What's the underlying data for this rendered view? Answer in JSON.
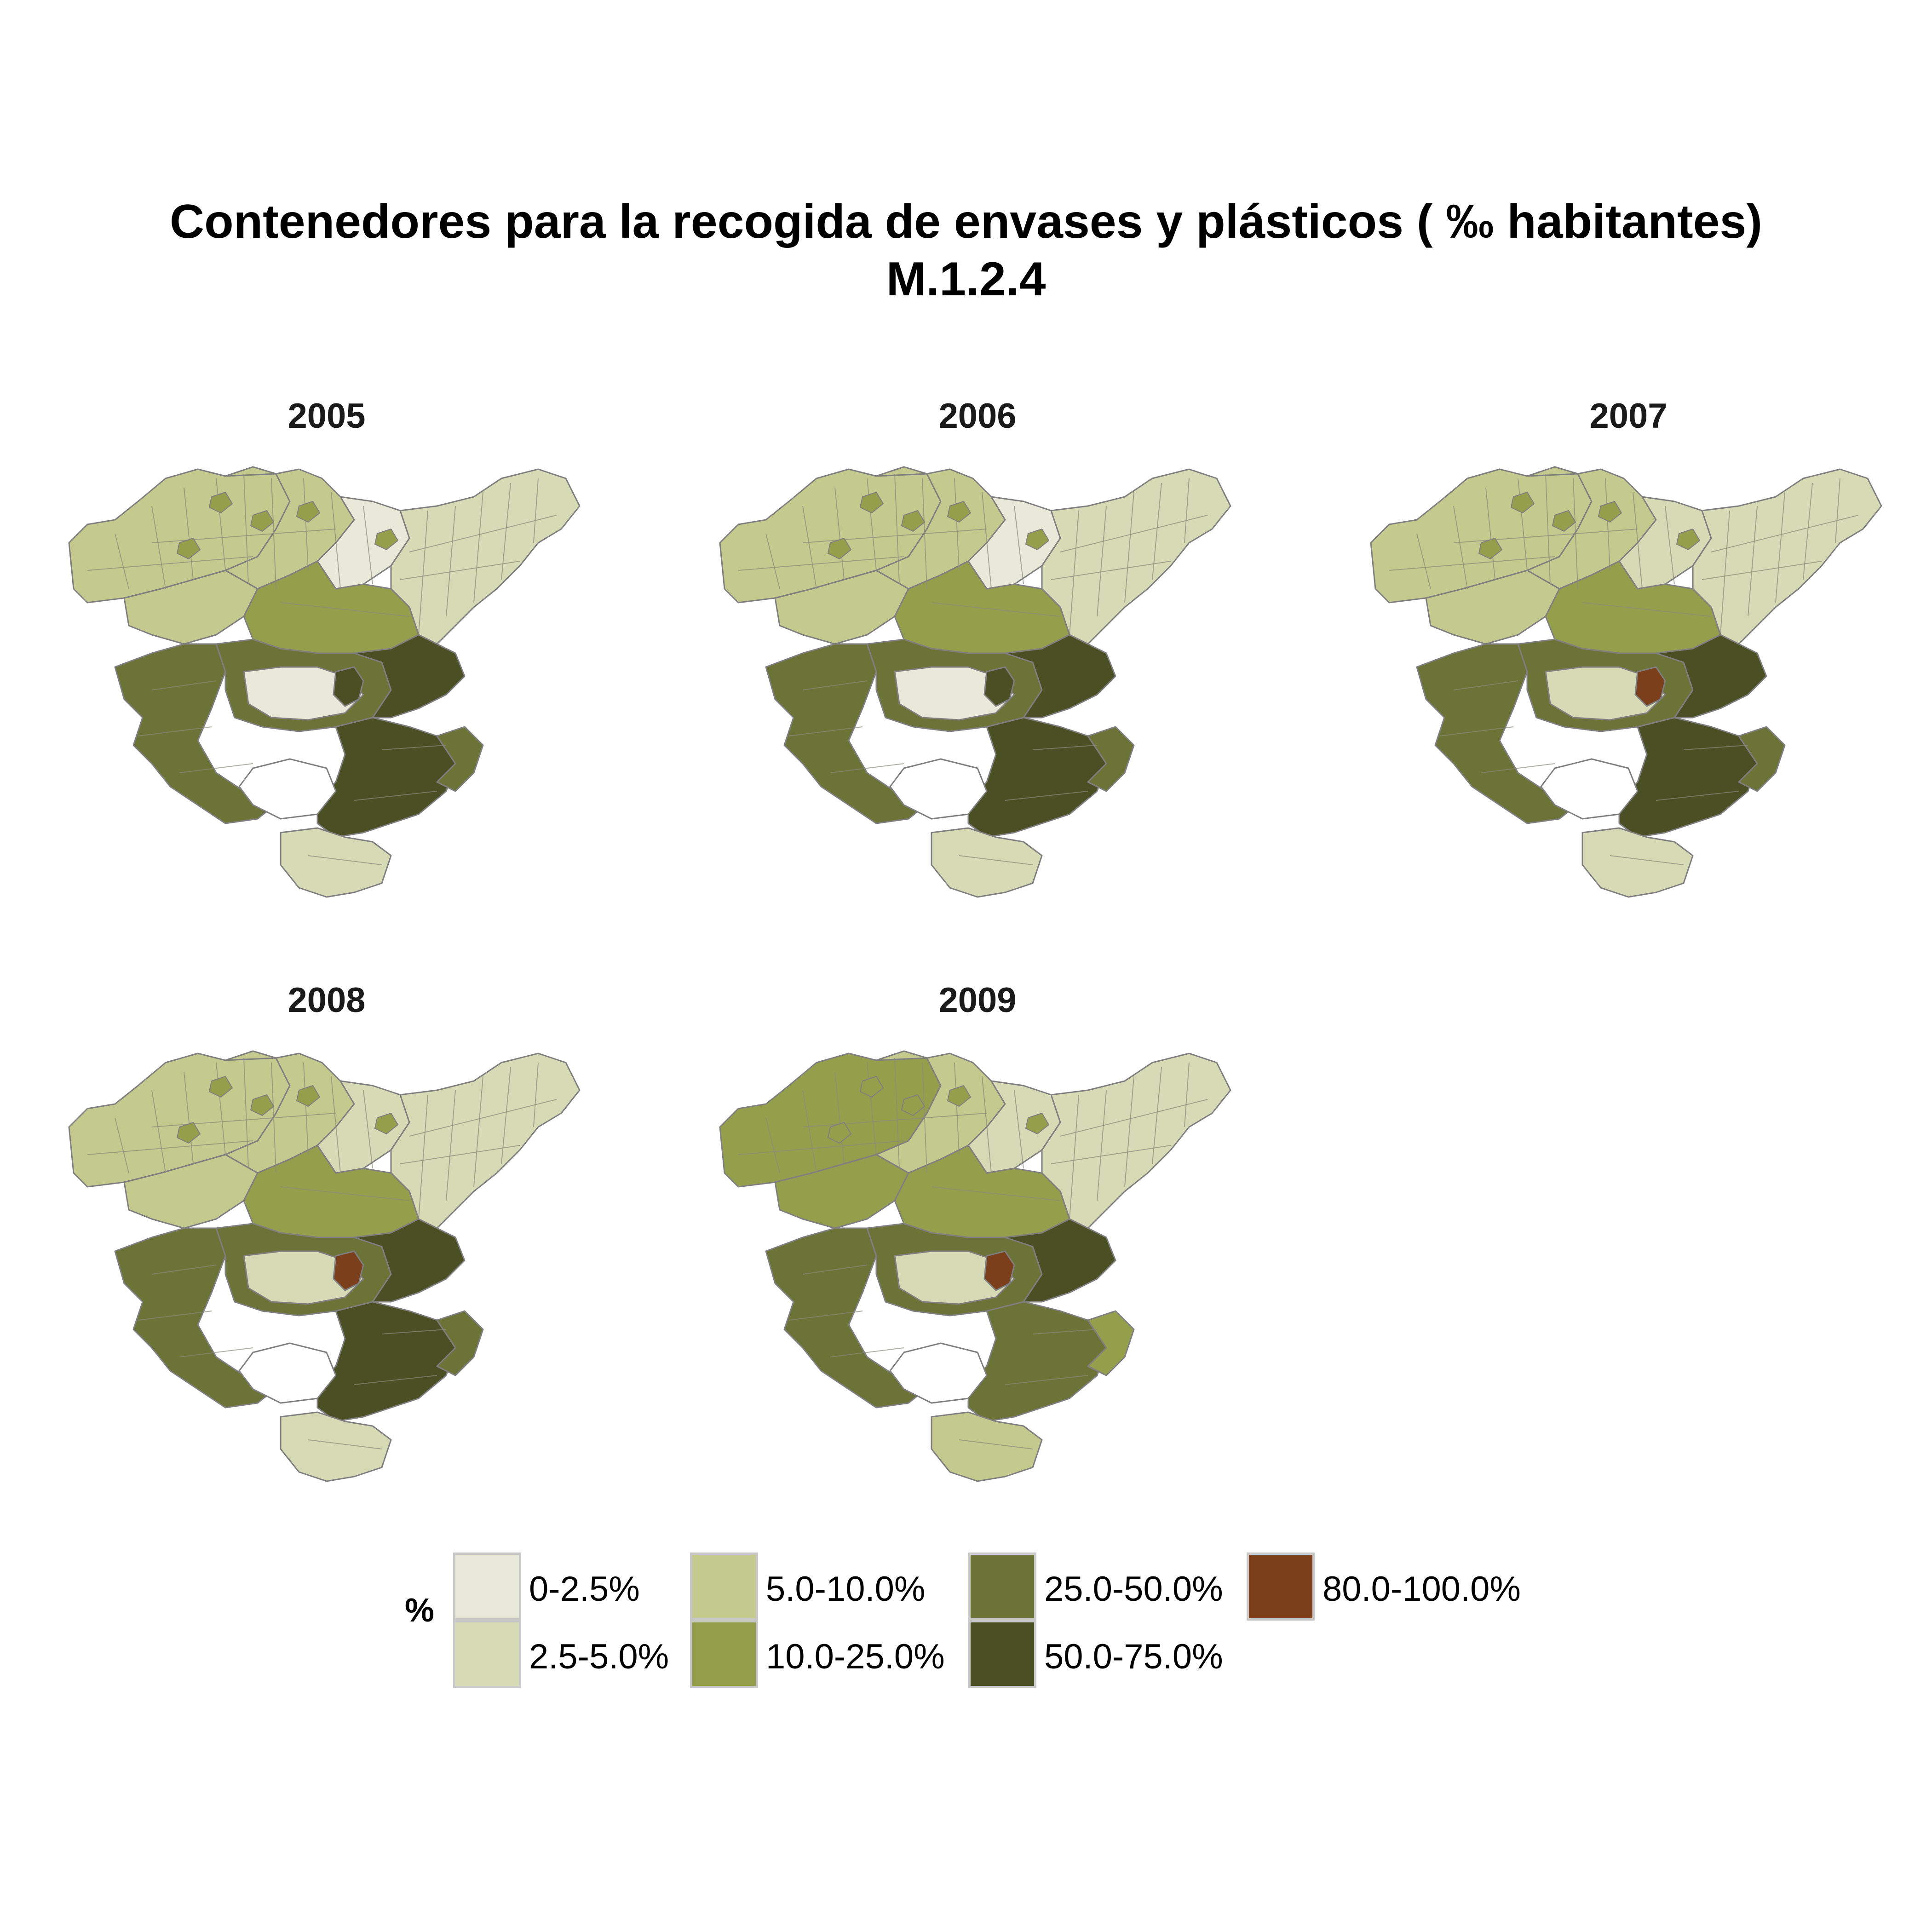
{
  "title": {
    "line1": "Contenedores para la recogida de envases y plásticos ( ‰ habitantes)",
    "line2": "M.1.2.4"
  },
  "panels": [
    {
      "year": "2005"
    },
    {
      "year": "2006"
    },
    {
      "year": "2007"
    },
    {
      "year": "2008"
    },
    {
      "year": "2009"
    }
  ],
  "legend": {
    "title": "%",
    "items": [
      {
        "label": "0-2.5%",
        "color": "#e8e9d8"
      },
      {
        "label": "2.5-5.0%",
        "color": "#d6dab5"
      },
      {
        "label": "5.0-10.0%",
        "color": "#c4ca8e"
      },
      {
        "label": "10.0-25.0%",
        "color": "#949f4c"
      },
      {
        "label": "25.0-50.0%",
        "color": "#6b7337"
      },
      {
        "label": "50.0-75.0%",
        "color": "#4a4f24"
      },
      {
        "label": "80.0-100.0%",
        "color": "#7b3f1c"
      }
    ]
  },
  "chart_data": {
    "type": "choropleth-map",
    "facets": [
      "2005",
      "2006",
      "2007",
      "2008",
      "2009"
    ],
    "value_bins": [
      "0-2.5%",
      "2.5-5.0%",
      "5.0-10.0%",
      "10.0-25.0%",
      "25.0-50.0%",
      "50.0-75.0%",
      "80.0-100.0%"
    ],
    "highest_bin_present": {
      "2005": false,
      "2006": false,
      "2007": true,
      "2008": true,
      "2009": true
    }
  }
}
